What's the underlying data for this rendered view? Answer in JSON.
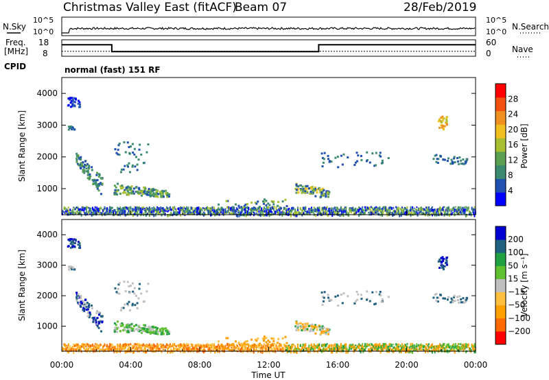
{
  "header": {
    "station": "Christmas Valley East (fitACF)",
    "beam": "Beam 07",
    "date": "28/Feb/2019"
  },
  "strip_labels": {
    "nsky": "N.Sky",
    "nsearch": "N.Search",
    "freq_line1": "Freq.",
    "freq_line2": "[MHz]",
    "nave": "Nave",
    "cpid": "CPID",
    "cpid_value": "normal (fast) 151 RF",
    "noise_ticks": [
      "10^5",
      "10^0"
    ],
    "freq_ticks": [
      "18",
      "8"
    ],
    "nave_ticks": [
      "60",
      "0"
    ]
  },
  "time_axis": {
    "label": "Time UT",
    "ticks": [
      "00:00",
      "04:00",
      "08:00",
      "12:00",
      "16:00",
      "20:00",
      "00:00"
    ]
  },
  "colors": {
    "power": [
      "#0000ff",
      "#2050b0",
      "#3a8a70",
      "#5aa050",
      "#a8c030",
      "#f0c020",
      "#f09020",
      "#f05010",
      "#ff0000"
    ],
    "velocity": [
      "#ff0000",
      "#ff6a00",
      "#ff9f00",
      "#ffc040",
      "#c0c0c0",
      "#60c030",
      "#20a040",
      "#206080",
      "#0000d0"
    ]
  },
  "chart_data": [
    {
      "type": "line",
      "name": "noise",
      "ylabel_left": "N.Sky",
      "ylabel_right": "N.Search",
      "ytick_labels": [
        "10^5",
        "10^0"
      ],
      "description_values": {
        "t_hours": [
          0,
          0.5,
          24
        ],
        "log_level": [
          0.2,
          0.3,
          0.3
        ]
      }
    },
    {
      "type": "line",
      "name": "frequency",
      "ylabel": "Freq. [MHz]",
      "y_right_label": "Nave",
      "ylim": [
        8,
        18
      ],
      "x_hours": [
        0,
        2.9,
        2.9,
        14.9,
        14.9,
        24
      ],
      "freq_mhz": [
        15,
        15,
        10.8,
        10.8,
        15,
        15
      ],
      "nave_level": 18
    },
    {
      "type": "heatmap",
      "name": "power",
      "ylabel": "Slant Range [km]",
      "yticks": [
        1000,
        2000,
        3000,
        4000
      ],
      "ylim": [
        180,
        4500
      ],
      "xlim_hours": [
        0,
        24
      ],
      "colorbar_label": "Power [dB]",
      "colorbar_ticks": [
        "4",
        "8",
        "12",
        "16",
        "20",
        "24",
        "28"
      ],
      "colorbar_range": [
        0,
        30
      ]
    },
    {
      "type": "heatmap",
      "name": "velocity",
      "ylabel": "Slant Range [km]",
      "yticks": [
        1000,
        2000,
        3000,
        4000
      ],
      "ylim": [
        180,
        4500
      ],
      "xlim_hours": [
        0,
        24
      ],
      "colorbar_label": "Velocity [m s⁻¹]",
      "colorbar_ticks": [
        "200",
        "100",
        "50",
        "15",
        "−15",
        "−50",
        "−100",
        "−200"
      ]
    }
  ]
}
